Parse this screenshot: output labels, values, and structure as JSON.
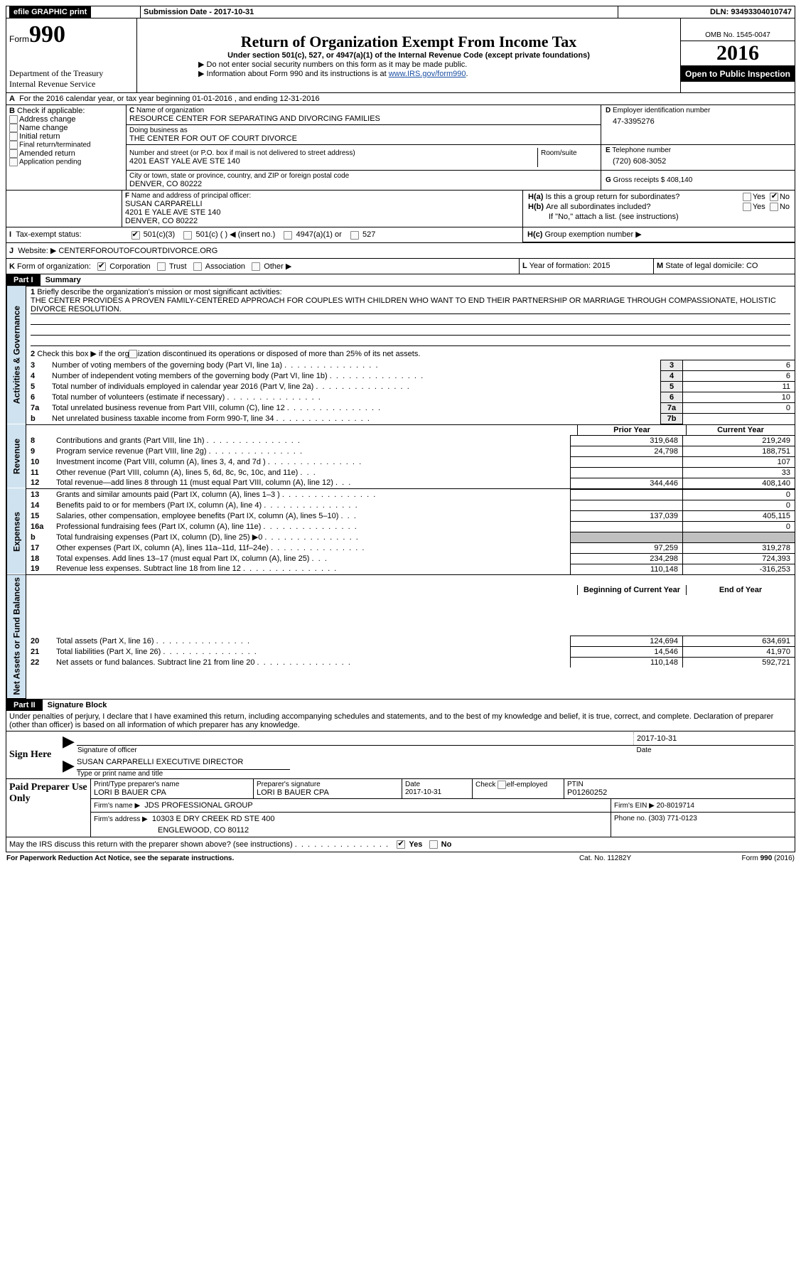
{
  "topbar": {
    "efile": "efile GRAPHIC print",
    "submission_label": "Submission Date - 2017-10-31",
    "dln_label": "DLN: 93493304010747"
  },
  "header": {
    "form_label": "Form",
    "form_number": "990",
    "title": "Return of Organization Exempt From Income Tax",
    "subtitle": "Under section 501(c), 527, or 4947(a)(1) of the Internal Revenue Code (except private foundations)",
    "note1": "▶ Do not enter social security numbers on this form as it may be made public.",
    "note2_prefix": "▶ Information about Form 990 and its instructions is at ",
    "note2_link": "www.IRS.gov/form990",
    "note2_suffix": ".",
    "dept1": "Department of the Treasury",
    "dept2": "Internal Revenue Service",
    "omb": "OMB No. 1545-0047",
    "year": "2016",
    "open": "Open to Public Inspection"
  },
  "sectionA": {
    "line": "For the 2016 calendar year, or tax year beginning 01-01-2016   , and ending 12-31-2016",
    "b_label": "Check if applicable:",
    "b_opts": [
      "Address change",
      "Name change",
      "Initial return",
      "Final return/terminated",
      "Amended return",
      "Application pending"
    ],
    "c_label": "Name of organization",
    "c_name": "RESOURCE CENTER FOR SEPARATING AND DIVORCING FAMILIES",
    "dba_label": "Doing business as",
    "dba": "THE CENTER FOR OUT OF COURT DIVORCE",
    "street_label": "Number and street (or P.O. box if mail is not delivered to street address)",
    "room_label": "Room/suite",
    "street": "4201 EAST YALE AVE STE 140",
    "city_label": "City or town, state or province, country, and ZIP or foreign postal code",
    "city": "DENVER, CO  80222",
    "d_label": "Employer identification number",
    "d_val": "47-3395276",
    "e_label": "Telephone number",
    "e_val": "(720) 608-3052",
    "g_label": "Gross receipts $ 408,140",
    "f_label": "Name and address of principal officer:",
    "f_name": "SUSAN CARPARELLI",
    "f_addr1": "4201 E YALE AVE STE 140",
    "f_addr2": "DENVER, CO  80222",
    "ha_label": "Is this a group return for subordinates?",
    "hb_label": "Are all subordinates included?",
    "hb_note": "If \"No,\" attach a list. (see instructions)",
    "hc_label": "Group exemption number ▶",
    "yes": "Yes",
    "no": "No",
    "i_label": "Tax-exempt status:",
    "i_501c3": "501(c)(3)",
    "i_501c": "501(c) (  ) ◀ (insert no.)",
    "i_4947": "4947(a)(1) or",
    "i_527": "527",
    "j_label": "Website: ▶",
    "j_val": "CENTERFOROUTOFCOURTDIVORCE.ORG",
    "k_label": "Form of organization:",
    "k_opts": [
      "Corporation",
      "Trust",
      "Association",
      "Other ▶"
    ],
    "l_label": "Year of formation: 2015",
    "m_label": "State of legal domicile: CO"
  },
  "part1": {
    "tab": "Part I",
    "title": "Summary",
    "side_act": "Activities & Governance",
    "side_rev": "Revenue",
    "side_exp": "Expenses",
    "side_net": "Net Assets or Fund Balances",
    "l1": "Briefly describe the organization's mission or most significant activities:",
    "l1text": "THE CENTER PROVIDES A PROVEN FAMILY-CENTERED APPROACH FOR COUPLES WITH CHILDREN WHO WANT TO END THEIR PARTNERSHIP OR MARRIAGE THROUGH COMPASSIONATE, HOLISTIC DIVORCE RESOLUTION.",
    "l2": "Check this box ▶          if the organization discontinued its operations or disposed of more than 25% of its net assets.",
    "rows_gov": [
      {
        "n": "3",
        "t": "Number of voting members of the governing body (Part VI, line 1a)",
        "b": "3",
        "v": "6"
      },
      {
        "n": "4",
        "t": "Number of independent voting members of the governing body (Part VI, line 1b)",
        "b": "4",
        "v": "6"
      },
      {
        "n": "5",
        "t": "Total number of individuals employed in calendar year 2016 (Part V, line 2a)",
        "b": "5",
        "v": "11"
      },
      {
        "n": "6",
        "t": "Total number of volunteers (estimate if necessary)",
        "b": "6",
        "v": "10"
      },
      {
        "n": "7a",
        "t": "Total unrelated business revenue from Part VIII, column (C), line 12",
        "b": "7a",
        "v": "0"
      },
      {
        "n": "b",
        "t": "Net unrelated business taxable income from Form 990-T, line 34",
        "b": "7b",
        "v": ""
      }
    ],
    "prior_hdr": "Prior Year",
    "curr_hdr": "Current Year",
    "rows_rev": [
      {
        "n": "8",
        "t": "Contributions and grants (Part VIII, line 1h)",
        "p": "319,648",
        "c": "219,249"
      },
      {
        "n": "9",
        "t": "Program service revenue (Part VIII, line 2g)",
        "p": "24,798",
        "c": "188,751"
      },
      {
        "n": "10",
        "t": "Investment income (Part VIII, column (A), lines 3, 4, and 7d )",
        "p": "",
        "c": "107"
      },
      {
        "n": "11",
        "t": "Other revenue (Part VIII, column (A), lines 5, 6d, 8c, 9c, 10c, and 11e)",
        "p": "",
        "c": "33"
      },
      {
        "n": "12",
        "t": "Total revenue—add lines 8 through 11 (must equal Part VIII, column (A), line 12)",
        "p": "344,446",
        "c": "408,140"
      }
    ],
    "rows_exp": [
      {
        "n": "13",
        "t": "Grants and similar amounts paid (Part IX, column (A), lines 1–3 )",
        "p": "",
        "c": "0"
      },
      {
        "n": "14",
        "t": "Benefits paid to or for members (Part IX, column (A), line 4)",
        "p": "",
        "c": "0"
      },
      {
        "n": "15",
        "t": "Salaries, other compensation, employee benefits (Part IX, column (A), lines 5–10)",
        "p": "137,039",
        "c": "405,115"
      },
      {
        "n": "16a",
        "t": "Professional fundraising fees (Part IX, column (A), line 11e)",
        "p": "",
        "c": "0"
      },
      {
        "n": "b",
        "t": "Total fundraising expenses (Part IX, column (D), line 25) ▶0",
        "p": "GREY",
        "c": "GREY"
      },
      {
        "n": "17",
        "t": "Other expenses (Part IX, column (A), lines 11a–11d, 11f–24e)",
        "p": "97,259",
        "c": "319,278"
      },
      {
        "n": "18",
        "t": "Total expenses. Add lines 13–17 (must equal Part IX, column (A), line 25)",
        "p": "234,298",
        "c": "724,393"
      },
      {
        "n": "19",
        "t": "Revenue less expenses. Subtract line 18 from line 12",
        "p": "110,148",
        "c": "-316,253"
      }
    ],
    "beg_hdr": "Beginning of Current Year",
    "end_hdr": "End of Year",
    "rows_net": [
      {
        "n": "20",
        "t": "Total assets (Part X, line 16)",
        "p": "124,694",
        "c": "634,691"
      },
      {
        "n": "21",
        "t": "Total liabilities (Part X, line 26)",
        "p": "14,546",
        "c": "41,970"
      },
      {
        "n": "22",
        "t": "Net assets or fund balances. Subtract line 21 from line 20",
        "p": "110,148",
        "c": "592,721"
      }
    ]
  },
  "part2": {
    "tab": "Part II",
    "title": "Signature Block",
    "declare": "Under penalties of perjury, I declare that I have examined this return, including accompanying schedules and statements, and to the best of my knowledge and belief, it is true, correct, and complete. Declaration of preparer (other than officer) is based on all information of which preparer has any knowledge.",
    "sign_here": "Sign Here",
    "sig_officer": "Signature of officer",
    "date_label": "Date",
    "sig_date": "2017-10-31",
    "typed_name": "SUSAN CARPARELLI  EXECUTIVE DIRECTOR",
    "typed_label": "Type or print name and title",
    "paid_use": "Paid Preparer Use Only",
    "prep_name_label": "Print/Type preparer's name",
    "prep_name": "LORI B BAUER CPA",
    "prep_sig_label": "Preparer's signature",
    "prep_sig": "LORI B BAUER CPA",
    "prep_date_label": "Date",
    "prep_date": "2017-10-31",
    "check_self": "Check        if self-employed",
    "ptin_label": "PTIN",
    "ptin": "P01260252",
    "firm_name_label": "Firm's name    ▶",
    "firm_name": "JDS PROFESSIONAL GROUP",
    "firm_ein_label": "Firm's EIN ▶ 20-8019714",
    "firm_addr_label": "Firm's address ▶",
    "firm_addr": "10303 E DRY CREEK RD STE 400",
    "firm_city": "ENGLEWOOD, CO  80112",
    "firm_phone": "Phone no. (303) 771-0123",
    "discuss": "May the IRS discuss this return with the preparer shown above? (see instructions)"
  },
  "footer": {
    "pra": "For Paperwork Reduction Act Notice, see the separate instructions.",
    "cat": "Cat. No. 11282Y",
    "form": "Form 990 (2016)"
  }
}
